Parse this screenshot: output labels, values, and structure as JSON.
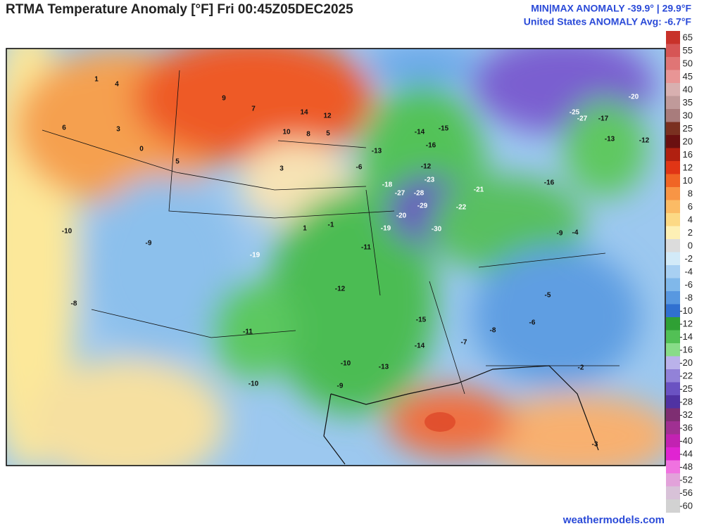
{
  "header": {
    "title": "RTMA Temperature Anomaly [°F]  Fri 00:45Z05DEC2025",
    "stats_line1": "MIN|MAX ANOMALY -39.9° | 29.9°F",
    "stats_line2": "United States ANOMALY Avg: -6.7°F"
  },
  "colorbar": [
    {
      "label": 65,
      "color": "#c8322a"
    },
    {
      "label": 55,
      "color": "#d65555"
    },
    {
      "label": 50,
      "color": "#e07575"
    },
    {
      "label": 45,
      "color": "#e89595"
    },
    {
      "label": 40,
      "color": "#d8b0b0"
    },
    {
      "label": 35,
      "color": "#c09a9a"
    },
    {
      "label": 30,
      "color": "#a87c7c"
    },
    {
      "label": 25,
      "color": "#7a3020"
    },
    {
      "label": 20,
      "color": "#6a1010"
    },
    {
      "label": 16,
      "color": "#b02010"
    },
    {
      "label": 12,
      "color": "#e03515"
    },
    {
      "label": 10,
      "color": "#f06525"
    },
    {
      "label": 8,
      "color": "#f89545"
    },
    {
      "label": 6,
      "color": "#fbbb65"
    },
    {
      "label": 4,
      "color": "#fcd985"
    },
    {
      "label": 2,
      "color": "#fdf0b5"
    },
    {
      "label": 0,
      "color": "#dcdcdc"
    },
    {
      "label": -2,
      "color": "#d2eaf8"
    },
    {
      "label": -4,
      "color": "#a8d0f2"
    },
    {
      "label": -6,
      "color": "#80b8ea"
    },
    {
      "label": -8,
      "color": "#5898e0"
    },
    {
      "label": -10,
      "color": "#3070d0"
    },
    {
      "label": -12,
      "color": "#2fa034"
    },
    {
      "label": -14,
      "color": "#52c055"
    },
    {
      "label": -16,
      "color": "#88dc88"
    },
    {
      "label": -20,
      "color": "#bab2ea"
    },
    {
      "label": -22,
      "color": "#9282d8"
    },
    {
      "label": -25,
      "color": "#6a52c2"
    },
    {
      "label": -28,
      "color": "#5032a2"
    },
    {
      "label": -32,
      "color": "#7e2e72"
    },
    {
      "label": -36,
      "color": "#a03092"
    },
    {
      "label": -40,
      "color": "#c222b2"
    },
    {
      "label": -44,
      "color": "#e024d2"
    },
    {
      "label": -48,
      "color": "#f072e0"
    },
    {
      "label": -52,
      "color": "#e2a2da"
    },
    {
      "label": -56,
      "color": "#d8c2d8"
    },
    {
      "label": -60,
      "color": "#d2d2d2"
    }
  ],
  "map": {
    "labels": [
      14,
      12,
      9,
      10,
      8,
      5,
      7,
      -27,
      -25,
      -30,
      -29,
      -28,
      -27,
      -23,
      -18,
      -19,
      -20,
      -12,
      -16,
      -15,
      -21,
      -22,
      -14,
      -13,
      -11,
      -12,
      -10,
      -13,
      -9,
      -15,
      -14,
      -7,
      -8,
      -5,
      -3,
      -2,
      -6,
      -10,
      -11,
      -19,
      -9,
      -10,
      -8,
      1,
      4,
      6,
      3,
      0,
      5,
      3,
      1,
      -1,
      -6,
      -17,
      -20,
      -13,
      -12,
      -16,
      -9,
      -4
    ]
  },
  "footer": {
    "source": "weathermodels.com"
  }
}
